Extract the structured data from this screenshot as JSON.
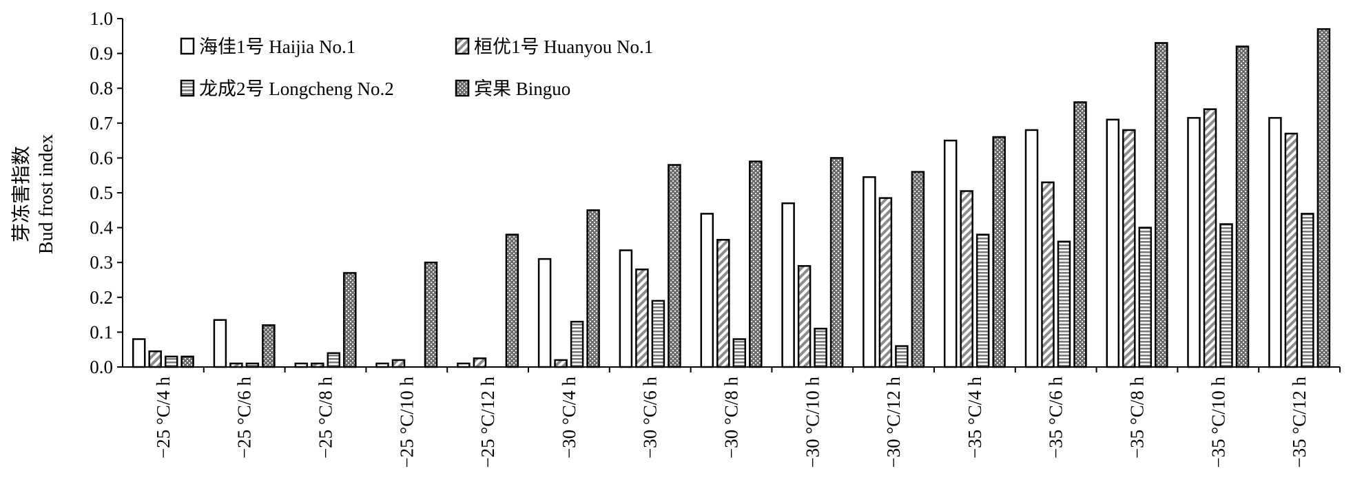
{
  "chart_data": {
    "type": "bar",
    "ylabel_cn": "芽冻害指数",
    "ylabel_en": "Bud frost index",
    "xlabel": "",
    "ylim": [
      0,
      1.0
    ],
    "yticks": [
      "0.0",
      "0.1",
      "0.2",
      "0.3",
      "0.4",
      "0.5",
      "0.6",
      "0.7",
      "0.8",
      "0.9",
      "1.0"
    ],
    "grid": false,
    "legend_position": "top-left",
    "categories": [
      "−25 °C/4 h",
      "−25 °C/6 h",
      "−25 °C/8 h",
      "−25 °C/10 h",
      "−25 °C/12 h",
      "−30 °C/4 h",
      "−30 °C/6 h",
      "−30 °C/8 h",
      "−30 °C/10 h",
      "−30 °C/12 h",
      "−35 °C/4 h",
      "−35 °C/6 h",
      "−35 °C/8 h",
      "−35 °C/10 h",
      "−35 °C/12 h"
    ],
    "series": [
      {
        "name": "海佳1号 Haijia No.1",
        "pattern": "white",
        "values": [
          0.08,
          0.135,
          0.01,
          0.01,
          0.01,
          0.31,
          0.335,
          0.44,
          0.47,
          0.545,
          0.65,
          0.68,
          0.71,
          0.715,
          0.715
        ]
      },
      {
        "name": "桓优1号 Huanyou No.1",
        "pattern": "diagonal",
        "values": [
          0.045,
          0.01,
          0.01,
          0.02,
          0.025,
          0.02,
          0.28,
          0.365,
          0.29,
          0.485,
          0.505,
          0.53,
          0.68,
          0.74,
          0.67
        ]
      },
      {
        "name": "龙成2号 Longcheng No.2",
        "pattern": "horizontal",
        "values": [
          0.03,
          0.01,
          0.04,
          0.0,
          0.0,
          0.13,
          0.19,
          0.08,
          0.11,
          0.06,
          0.38,
          0.36,
          0.4,
          0.41,
          0.44
        ]
      },
      {
        "name": "宾果 Binguo",
        "pattern": "dots",
        "values": [
          0.03,
          0.12,
          0.27,
          0.3,
          0.38,
          0.45,
          0.58,
          0.59,
          0.6,
          0.56,
          0.66,
          0.76,
          0.93,
          0.92,
          0.97
        ]
      }
    ]
  }
}
